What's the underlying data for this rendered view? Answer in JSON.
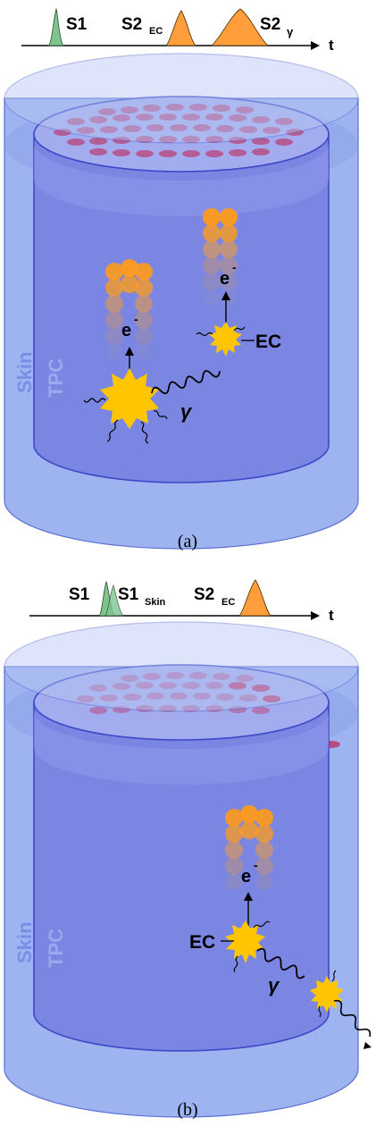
{
  "panel_a": {
    "timeline": {
      "s1": "S1",
      "s2": "S2",
      "s2_sub": "EC",
      "s2b": "S2",
      "s2b_sub": "γ",
      "axis": "t"
    },
    "labels": {
      "skin": "Skin",
      "tpc": "TPC",
      "electron": "e",
      "electron_sup": "-",
      "gamma": "γ",
      "ec": "EC"
    },
    "caption": "(a)"
  },
  "panel_b": {
    "timeline": {
      "s1": "S1",
      "s1_skin": "S1",
      "s1_skin_sub": "Skin",
      "s2": "S2",
      "s2_sub": "EC",
      "axis": "t"
    },
    "labels": {
      "skin": "Skin",
      "tpc": "TPC",
      "electron": "e",
      "electron_sup": "-",
      "gamma": "γ",
      "ec": "EC"
    },
    "caption": "(b)"
  },
  "colors": {
    "skin_fill": "#9db4f0",
    "tpc_fill": "#7a86e2",
    "outline": "#3e49c8",
    "flash": "#ffc600",
    "electron": "#ff9b1a",
    "s1_pulse": "#7fc48e",
    "s2_pulse": "#ff9e3a",
    "pmt": "#c0285a"
  }
}
